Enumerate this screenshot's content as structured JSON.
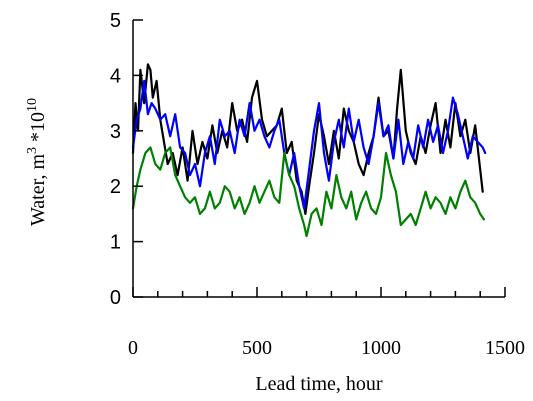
{
  "chart_data": {
    "type": "line",
    "title": "",
    "xlabel": "Lead time, hour",
    "ylabel": "Water, m",
    "ylabel_sup1": "3",
    "ylabel_mid": " *10",
    "ylabel_sup2": "10",
    "xlim": [
      0,
      1500
    ],
    "ylim": [
      0,
      5
    ],
    "x_ticks": [
      0,
      500,
      1000,
      1500
    ],
    "x_tick_labels": [
      "0",
      "500",
      "1000",
      "1500"
    ],
    "y_ticks": [
      0,
      1,
      2,
      3,
      4,
      5
    ],
    "y_tick_labels": [
      "0",
      "1",
      "2",
      "3",
      "4",
      "5"
    ],
    "x_minor_step": 100,
    "grid": false,
    "legend": "none",
    "series": [
      {
        "color": "#000000",
        "x": [
          0,
          10,
          20,
          30,
          45,
          60,
          70,
          80,
          95,
          110,
          125,
          140,
          160,
          180,
          200,
          220,
          240,
          260,
          280,
          300,
          320,
          340,
          360,
          380,
          400,
          420,
          440,
          460,
          480,
          500,
          520,
          540,
          560,
          580,
          600,
          620,
          640,
          660,
          680,
          695,
          710,
          730,
          750,
          770,
          790,
          810,
          830,
          850,
          870,
          890,
          910,
          930,
          950,
          970,
          990,
          1010,
          1030,
          1050,
          1065,
          1080,
          1100,
          1120,
          1140,
          1160,
          1180,
          1200,
          1220,
          1240,
          1260,
          1280,
          1300,
          1320,
          1340,
          1360,
          1380,
          1400,
          1410
        ],
        "y": [
          2.6,
          3.5,
          3.0,
          4.1,
          3.5,
          4.2,
          4.1,
          3.6,
          3.9,
          3.2,
          2.8,
          2.4,
          2.6,
          2.2,
          2.7,
          2.1,
          3.0,
          2.4,
          2.8,
          2.5,
          3.1,
          2.6,
          3.0,
          2.7,
          3.5,
          3.0,
          3.2,
          2.8,
          3.6,
          3.9,
          3.2,
          2.9,
          3.0,
          3.1,
          3.4,
          2.6,
          2.8,
          2.1,
          1.9,
          1.5,
          2.0,
          2.6,
          3.3,
          2.9,
          2.4,
          3.0,
          2.5,
          3.4,
          3.0,
          2.8,
          2.4,
          2.2,
          2.6,
          2.9,
          3.6,
          2.9,
          3.0,
          2.5,
          3.4,
          4.1,
          3.0,
          2.6,
          2.4,
          2.9,
          2.6,
          3.1,
          3.5,
          2.6,
          3.2,
          2.7,
          3.5,
          2.9,
          3.2,
          2.6,
          3.1,
          2.3,
          1.9
        ]
      },
      {
        "color": "#0000ff",
        "x": [
          0,
          15,
          30,
          45,
          60,
          75,
          90,
          110,
          130,
          150,
          170,
          190,
          210,
          230,
          250,
          270,
          290,
          310,
          330,
          350,
          370,
          390,
          410,
          430,
          450,
          470,
          490,
          510,
          530,
          550,
          570,
          590,
          610,
          630,
          650,
          670,
          690,
          710,
          730,
          750,
          770,
          790,
          810,
          830,
          850,
          870,
          890,
          910,
          930,
          950,
          970,
          990,
          1010,
          1030,
          1050,
          1070,
          1090,
          1110,
          1130,
          1150,
          1170,
          1190,
          1210,
          1230,
          1250,
          1270,
          1290,
          1310,
          1330,
          1350,
          1370,
          1390,
          1410,
          1420
        ],
        "y": [
          2.7,
          3.2,
          3.4,
          3.9,
          3.3,
          3.5,
          3.4,
          3.2,
          3.3,
          2.9,
          3.3,
          2.7,
          2.6,
          2.2,
          2.4,
          2.0,
          2.6,
          2.9,
          2.4,
          3.2,
          2.9,
          3.0,
          2.6,
          3.2,
          2.9,
          3.5,
          3.0,
          3.2,
          2.9,
          2.7,
          3.0,
          3.2,
          2.6,
          2.2,
          2.6,
          2.0,
          1.6,
          2.3,
          3.0,
          3.5,
          2.6,
          2.1,
          2.8,
          3.2,
          2.7,
          3.4,
          2.8,
          3.2,
          2.7,
          2.4,
          2.9,
          3.5,
          2.9,
          3.1,
          2.5,
          3.2,
          2.4,
          2.8,
          2.5,
          3.1,
          2.7,
          3.2,
          2.8,
          3.1,
          2.6,
          3.0,
          3.6,
          3.3,
          2.9,
          2.5,
          2.9,
          2.8,
          2.7,
          2.6
        ]
      },
      {
        "color": "#008000",
        "x": [
          0,
          15,
          30,
          50,
          70,
          90,
          110,
          130,
          150,
          170,
          190,
          210,
          230,
          250,
          270,
          290,
          310,
          330,
          350,
          370,
          390,
          410,
          430,
          450,
          470,
          490,
          510,
          530,
          550,
          570,
          590,
          610,
          630,
          650,
          670,
          690,
          700,
          720,
          740,
          760,
          780,
          800,
          820,
          840,
          860,
          880,
          900,
          920,
          940,
          960,
          980,
          1000,
          1020,
          1040,
          1060,
          1080,
          1100,
          1120,
          1140,
          1160,
          1180,
          1200,
          1220,
          1240,
          1260,
          1280,
          1300,
          1320,
          1340,
          1360,
          1380,
          1400,
          1415
        ],
        "y": [
          1.6,
          2.0,
          2.3,
          2.6,
          2.7,
          2.4,
          2.3,
          2.6,
          2.7,
          2.2,
          2.0,
          1.8,
          1.7,
          1.8,
          1.5,
          1.6,
          1.9,
          1.6,
          1.7,
          2.0,
          1.9,
          1.6,
          1.8,
          1.5,
          1.7,
          2.0,
          1.7,
          1.9,
          2.1,
          1.8,
          1.7,
          2.6,
          2.2,
          2.0,
          1.6,
          1.3,
          1.1,
          1.5,
          1.6,
          1.3,
          1.9,
          1.6,
          2.2,
          1.8,
          1.6,
          1.9,
          1.4,
          1.7,
          1.9,
          1.6,
          1.5,
          1.8,
          2.6,
          2.2,
          1.9,
          1.3,
          1.4,
          1.5,
          1.3,
          1.6,
          1.9,
          1.6,
          1.8,
          1.7,
          1.5,
          1.8,
          1.6,
          1.9,
          2.1,
          1.8,
          1.7,
          1.5,
          1.4
        ]
      }
    ]
  }
}
